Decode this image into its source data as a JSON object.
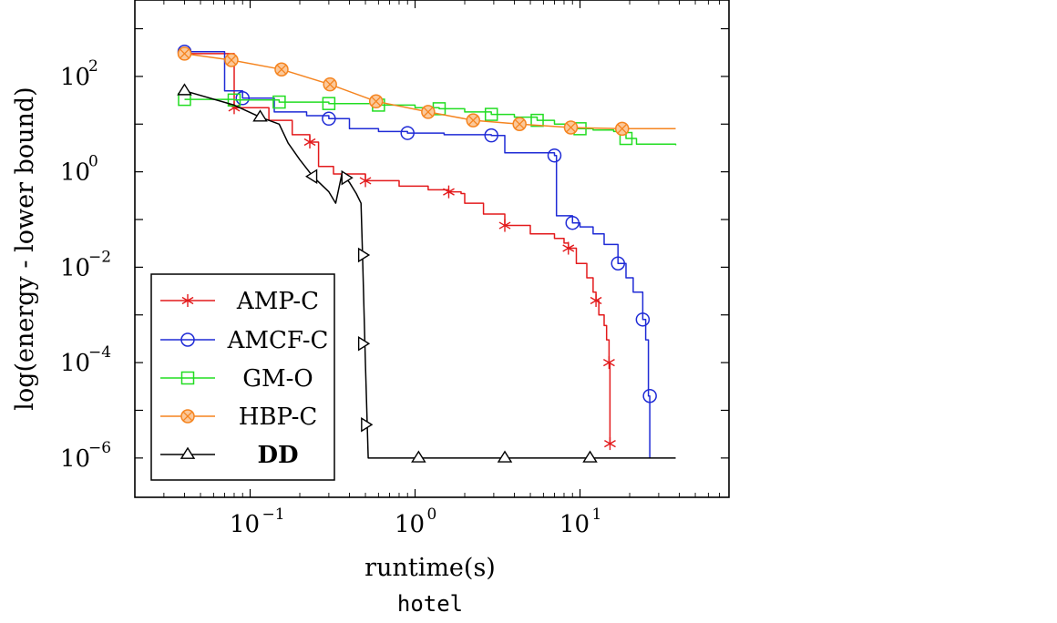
{
  "chart_data": {
    "type": "line",
    "caption": "hotel",
    "xlabel": "runtime(s)",
    "ylabel": "log(energy - lower bound)",
    "xscale": "log",
    "yscale": "log",
    "xlim": [
      0.02,
      80
    ],
    "ylim": [
      1.5e-07,
      4000
    ],
    "grid": false,
    "legend_position": "bottom-left",
    "x_ticks": [
      {
        "value": 0.1,
        "base": "10",
        "exp": "−1"
      },
      {
        "value": 1,
        "base": "10",
        "exp": "0"
      },
      {
        "value": 10,
        "base": "10",
        "exp": "1"
      }
    ],
    "y_ticks": [
      {
        "value": 100,
        "base": "10",
        "exp": "2"
      },
      {
        "value": 1,
        "base": "10",
        "exp": "0"
      },
      {
        "value": 0.01,
        "base": "10",
        "exp": "−2"
      },
      {
        "value": 0.0001,
        "base": "10",
        "exp": "−4"
      },
      {
        "value": 1e-06,
        "base": "10",
        "exp": "−6"
      }
    ],
    "series": [
      {
        "name": "AMP-C",
        "color": "#e31a1c",
        "marker": "star",
        "bold": false,
        "step": true,
        "x": [
          0.04,
          0.08,
          0.13,
          0.18,
          0.23,
          0.26,
          0.32,
          0.5,
          0.8,
          1.2,
          1.6,
          1.9,
          2.0,
          2.6,
          3.5,
          5,
          7,
          8,
          8.5,
          9.5,
          11,
          12,
          12.5,
          13,
          14,
          14.5,
          15,
          15.2
        ],
        "y": [
          300,
          22,
          12,
          6,
          4.2,
          1.3,
          0.9,
          0.65,
          0.5,
          0.42,
          0.38,
          0.35,
          0.22,
          0.13,
          0.075,
          0.05,
          0.04,
          0.032,
          0.025,
          0.012,
          0.006,
          0.003,
          0.002,
          0.001,
          0.0006,
          0.0003,
          0.0001,
          2e-06
        ],
        "markers_x": [
          0.04,
          0.08,
          0.23,
          0.5,
          1.6,
          3.5,
          8.5,
          12.5,
          15,
          15.2
        ],
        "markers_y": [
          300,
          22,
          4.2,
          0.65,
          0.38,
          0.075,
          0.025,
          0.002,
          0.0001,
          2e-06
        ]
      },
      {
        "name": "AMCF-C",
        "color": "#1f2bd6",
        "marker": "circle",
        "bold": false,
        "step": true,
        "x": [
          0.04,
          0.07,
          0.09,
          0.14,
          0.22,
          0.3,
          0.4,
          0.6,
          0.9,
          1.5,
          2.9,
          3.5,
          7,
          7.2,
          9,
          10,
          12,
          14,
          17,
          19,
          21,
          24,
          25,
          26,
          26.5
        ],
        "y": [
          330,
          50,
          35,
          18,
          15,
          13,
          8,
          7,
          6.5,
          6,
          5.8,
          2.5,
          2.2,
          0.12,
          0.085,
          0.07,
          0.05,
          0.03,
          0.012,
          0.006,
          0.003,
          0.0008,
          0.0003,
          2e-05,
          1e-06
        ],
        "markers_x": [
          0.04,
          0.09,
          0.3,
          0.9,
          2.9,
          7,
          9,
          17,
          24,
          26.5
        ],
        "markers_y": [
          330,
          35,
          13,
          6.5,
          5.8,
          2.2,
          0.085,
          0.012,
          0.0008,
          2e-05
        ]
      },
      {
        "name": "GM-O",
        "color": "#22dd22",
        "marker": "square",
        "bold": false,
        "step": true,
        "x": [
          0.04,
          0.08,
          0.15,
          0.3,
          0.6,
          1.0,
          1.4,
          2.0,
          2.9,
          4.0,
          5.5,
          7,
          9,
          12,
          16,
          19,
          22,
          38
        ],
        "y": [
          33,
          32,
          29,
          27,
          25,
          22,
          21,
          18,
          16,
          14,
          12,
          10,
          8,
          7.5,
          7,
          5,
          3.8,
          3.6
        ],
        "markers_x": [
          0.04,
          0.08,
          0.15,
          0.3,
          0.6,
          1.4,
          2.9,
          5.5,
          10,
          19
        ],
        "markers_y": [
          33,
          32,
          29,
          27,
          25,
          21,
          16,
          12,
          8,
          5
        ]
      },
      {
        "name": "HBP-C",
        "color": "#f5841f",
        "marker": "otimes",
        "bold": false,
        "step": false,
        "x": [
          0.04,
          0.077,
          0.155,
          0.305,
          0.58,
          1.2,
          2.25,
          4.3,
          8.8,
          18,
          38
        ],
        "y": [
          300,
          220,
          140,
          68,
          30,
          18,
          12,
          10,
          8.5,
          8,
          8
        ],
        "markers_x": [
          0.04,
          0.077,
          0.155,
          0.305,
          0.58,
          1.2,
          2.25,
          4.3,
          8.8,
          18
        ],
        "markers_y": [
          300,
          220,
          140,
          68,
          30,
          18,
          12,
          10,
          8.5,
          8
        ]
      },
      {
        "name": "DD",
        "color": "#000000",
        "marker": "triangle",
        "bold": true,
        "step": false,
        "x": [
          0.04,
          0.08,
          0.115,
          0.15,
          0.17,
          0.2,
          0.24,
          0.3,
          0.33,
          0.36,
          0.4,
          0.44,
          0.47,
          0.48,
          0.5,
          0.52,
          38
        ],
        "y": [
          50,
          25,
          14,
          10,
          4,
          1.8,
          0.8,
          0.38,
          0.22,
          0.9,
          0.6,
          0.35,
          0.22,
          0.02,
          0.0001,
          1e-06,
          1e-06
        ],
        "markers": [
          {
            "x": 0.04,
            "y": 50,
            "dir": "up"
          },
          {
            "x": 0.115,
            "y": 14,
            "dir": "up"
          },
          {
            "x": 0.24,
            "y": 0.8,
            "dir": "left"
          },
          {
            "x": 0.38,
            "y": 0.75,
            "dir": "right"
          },
          {
            "x": 0.48,
            "y": 0.018,
            "dir": "right"
          },
          {
            "x": 0.48,
            "y": 0.00025,
            "dir": "right"
          },
          {
            "x": 0.5,
            "y": 5e-06,
            "dir": "right"
          },
          {
            "x": 1.05,
            "y": 1e-06,
            "dir": "up"
          },
          {
            "x": 3.5,
            "y": 1e-06,
            "dir": "up"
          },
          {
            "x": 11.5,
            "y": 1e-06,
            "dir": "up"
          }
        ]
      }
    ]
  }
}
